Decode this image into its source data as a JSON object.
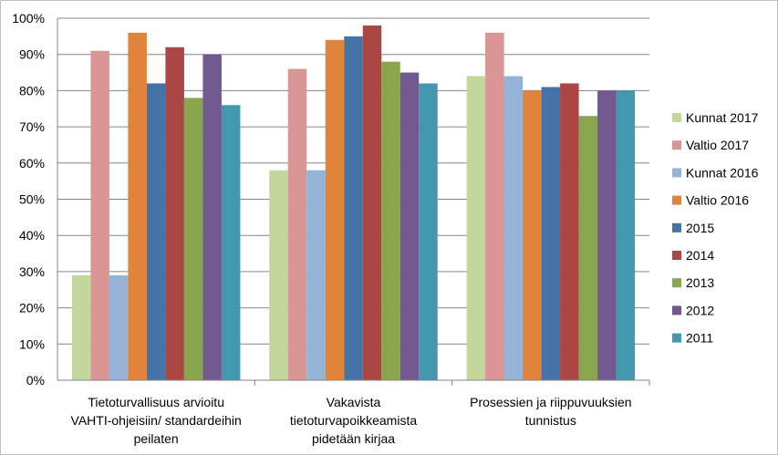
{
  "chart_data": {
    "type": "bar",
    "title": "",
    "xlabel": "",
    "ylabel": "",
    "ylim": [
      0,
      100
    ],
    "y_step": 10,
    "y_tick_labels": [
      "0%",
      "10%",
      "20%",
      "30%",
      "40%",
      "50%",
      "60%",
      "70%",
      "80%",
      "90%",
      "100%"
    ],
    "grid": true,
    "legend_position": "right",
    "categories": [
      [
        "Tietoturvallisuus arvioitu",
        "VAHTI-ohjeisiin/ standardeihin",
        "peilaten"
      ],
      [
        "Vakavista",
        "tietoturvapoikkeamista",
        "pidetään kirjaa"
      ],
      [
        "Prosessien ja riippuvuuksien",
        "tunnistus"
      ]
    ],
    "series": [
      {
        "name": "Kunnat 2017",
        "color": "#c3d69b",
        "values": [
          29,
          58,
          84
        ]
      },
      {
        "name": "Valtio 2017",
        "color": "#d99694",
        "values": [
          91,
          86,
          96
        ]
      },
      {
        "name": "Kunnat 2016",
        "color": "#95b3d7",
        "values": [
          29,
          58,
          84
        ]
      },
      {
        "name": "Valtio 2016",
        "color": "#e0843a",
        "values": [
          96,
          94,
          80
        ]
      },
      {
        "name": "2015",
        "color": "#4572a7",
        "values": [
          82,
          95,
          81
        ]
      },
      {
        "name": "2014",
        "color": "#aa4643",
        "values": [
          92,
          98,
          82
        ]
      },
      {
        "name": "2013",
        "color": "#89a54e",
        "values": [
          78,
          88,
          73
        ]
      },
      {
        "name": "2012",
        "color": "#71588f",
        "values": [
          90,
          85,
          80
        ]
      },
      {
        "name": "2011",
        "color": "#4198af",
        "values": [
          76,
          82,
          80
        ]
      }
    ]
  }
}
